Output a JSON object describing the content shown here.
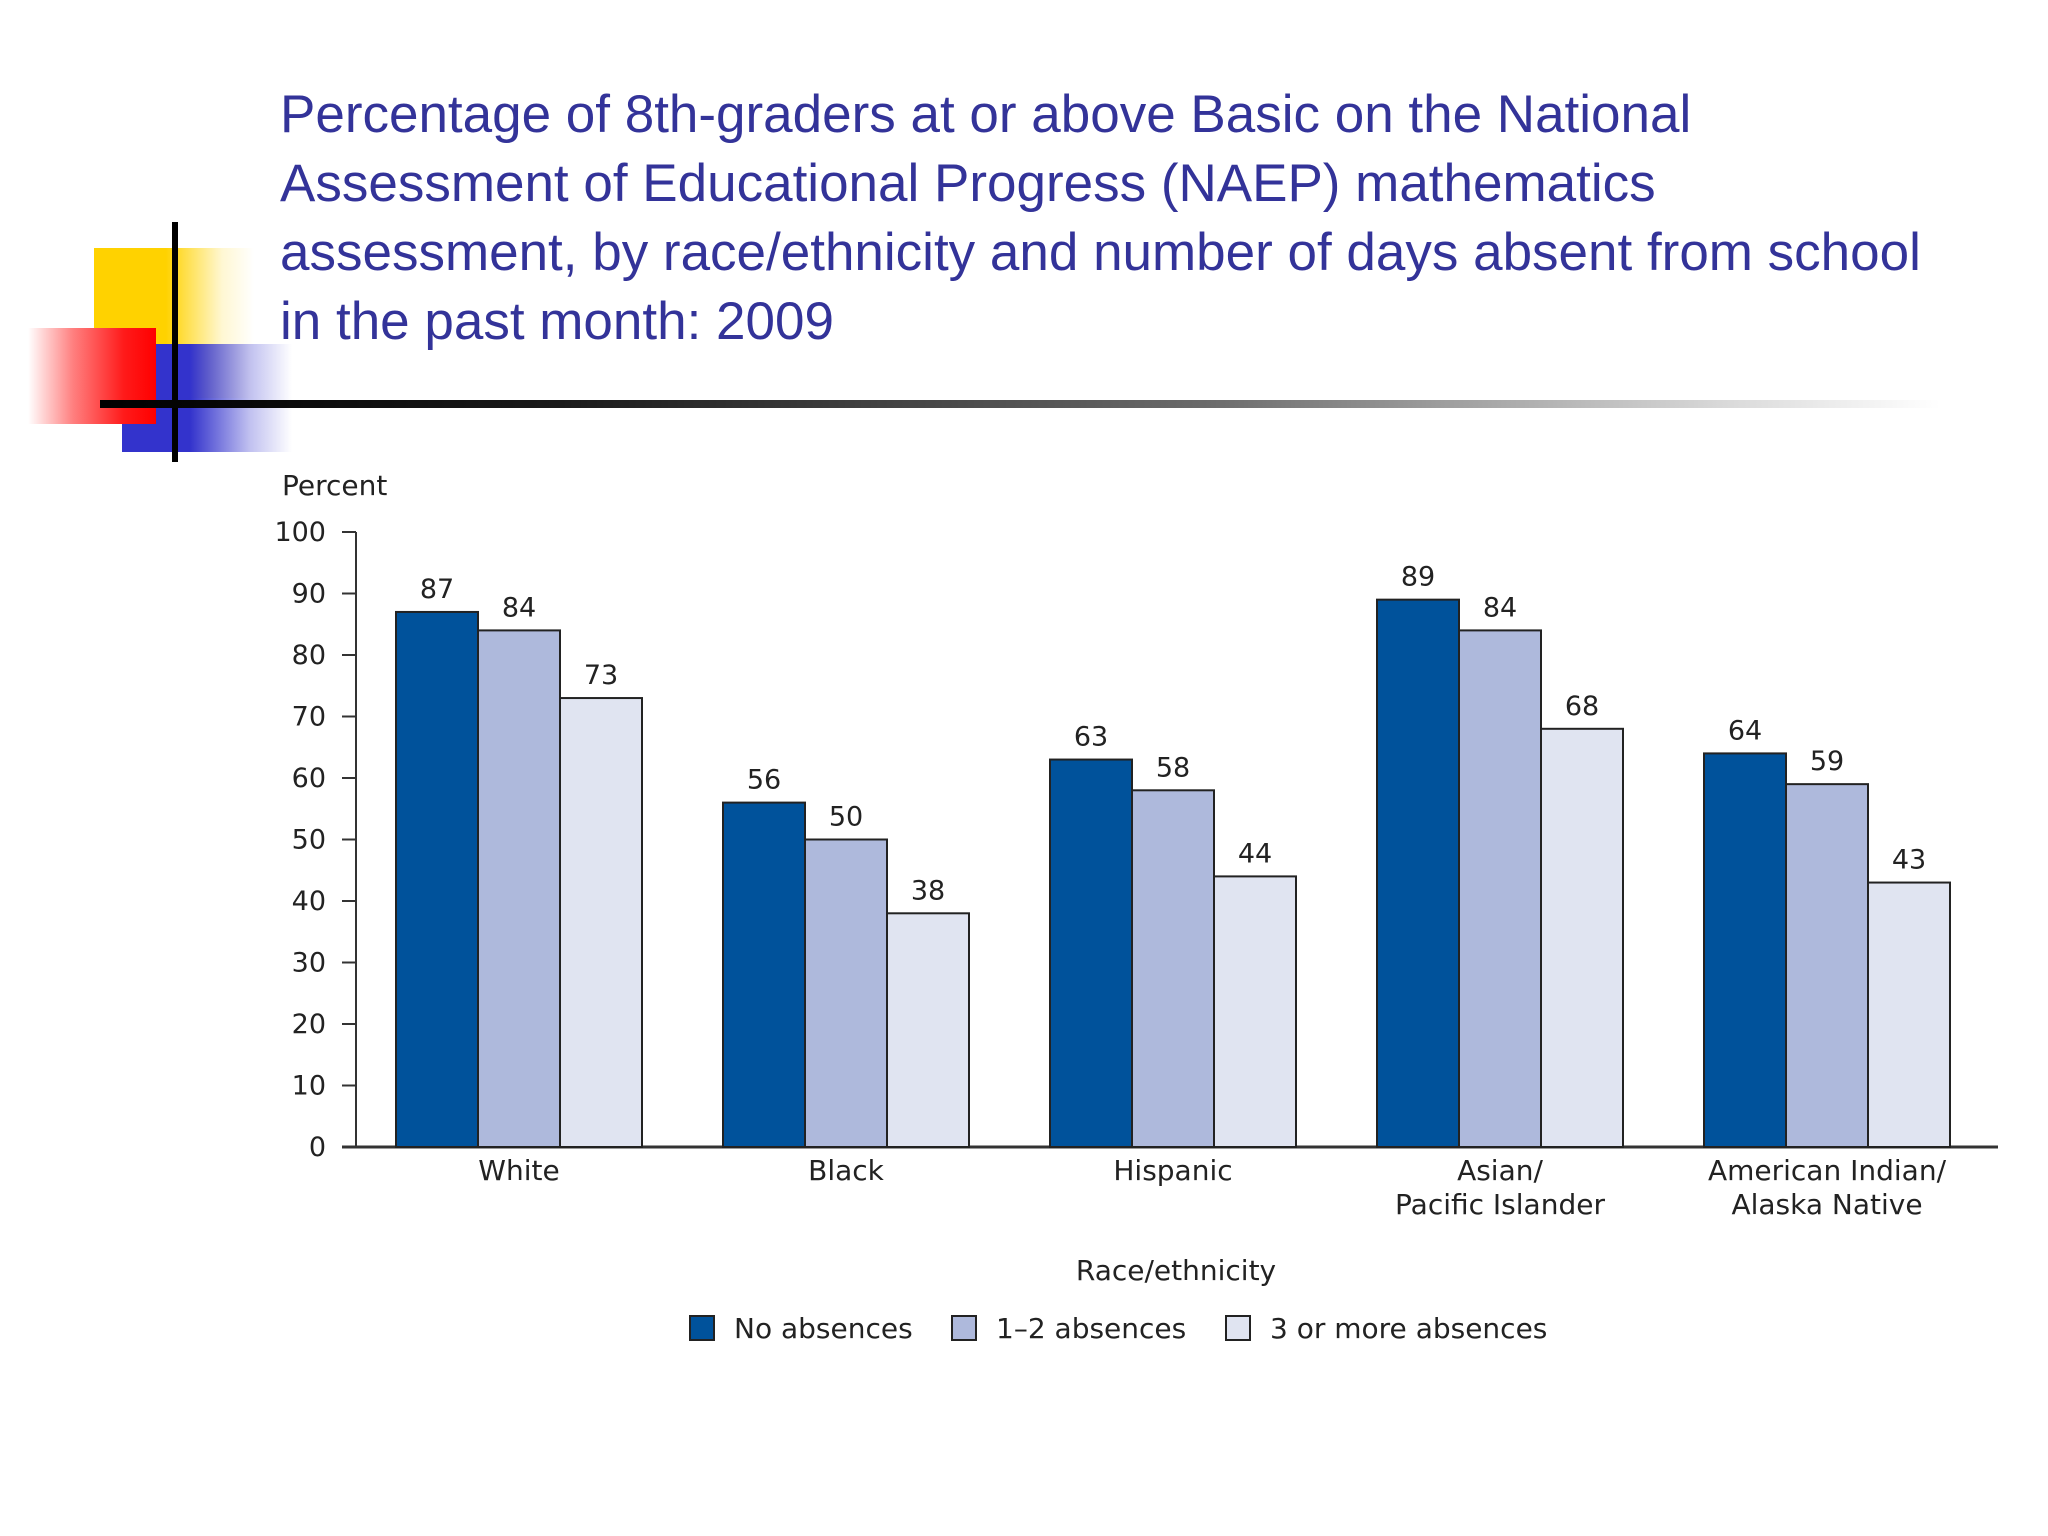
{
  "slide": {
    "title": "Percentage of 8th-graders at or above Basic on the National Assessment of Educational Progress (NAEP) mathematics assessment, by race/ethnicity and number of days absent from school in the past month: 2009"
  },
  "colors": {
    "title": "#333399",
    "deco_yellow": "#FFD200",
    "deco_red": "#FF1A1A",
    "deco_blue": "#3333CC"
  },
  "chart_data": {
    "type": "bar",
    "title": "",
    "ylabel": "Percent",
    "xlabel": "Race/ethnicity",
    "ylim": [
      0,
      100
    ],
    "yticks": [
      0,
      10,
      20,
      30,
      40,
      50,
      60,
      70,
      80,
      90,
      100
    ],
    "categories": [
      [
        "White"
      ],
      [
        "Black"
      ],
      [
        "Hispanic"
      ],
      [
        "Asian/",
        "Pacific Islander"
      ],
      [
        "American Indian/",
        "Alaska Native"
      ]
    ],
    "series": [
      {
        "name": "No absences",
        "color": "#00529B",
        "values": [
          87,
          56,
          63,
          89,
          64
        ]
      },
      {
        "name": "1–2 absences",
        "color": "#AEB9DC",
        "values": [
          84,
          50,
          58,
          84,
          59
        ]
      },
      {
        "name": "3 or more absences",
        "color": "#E0E4F1",
        "values": [
          73,
          38,
          44,
          68,
          43
        ]
      }
    ],
    "legend_position": "bottom-center",
    "grid": false
  }
}
